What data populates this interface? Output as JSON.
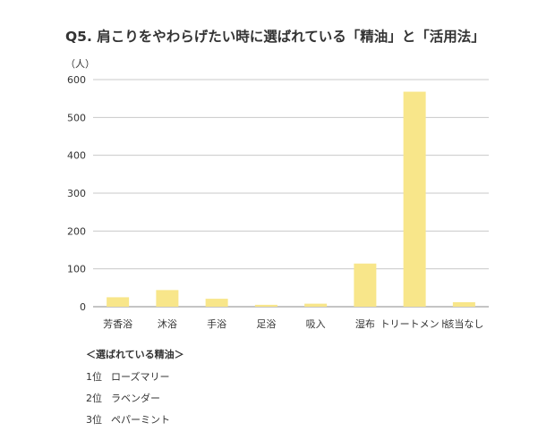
{
  "title": "Q5. 肩こりをやわらげたい時に選ばれている「精油」と「活用法」",
  "unit_label": "（人）",
  "colors": {
    "bar": "#f8e68a",
    "grid": "#c8c8c8",
    "axis": "#888888",
    "text": "#333333"
  },
  "chart_data": {
    "type": "bar",
    "categories": [
      "芳香浴",
      "沐浴",
      "手浴",
      "足浴",
      "吸入",
      "湿布",
      "トリートメント",
      "該当なし"
    ],
    "values": [
      25,
      44,
      21,
      5,
      8,
      114,
      568,
      12
    ],
    "ylim": [
      0,
      600
    ],
    "yticks": [
      "0",
      "100",
      "200",
      "300",
      "400",
      "500",
      "600"
    ],
    "ytick_values": [
      0,
      100,
      200,
      300,
      400,
      500,
      600
    ],
    "grid": true
  },
  "notes": {
    "heading": "＜選ばれている精油＞",
    "ranks": [
      {
        "pos": "1位",
        "name": "ローズマリー"
      },
      {
        "pos": "2位",
        "name": "ラベンダー"
      },
      {
        "pos": "3位",
        "name": "ペパーミント"
      }
    ]
  }
}
